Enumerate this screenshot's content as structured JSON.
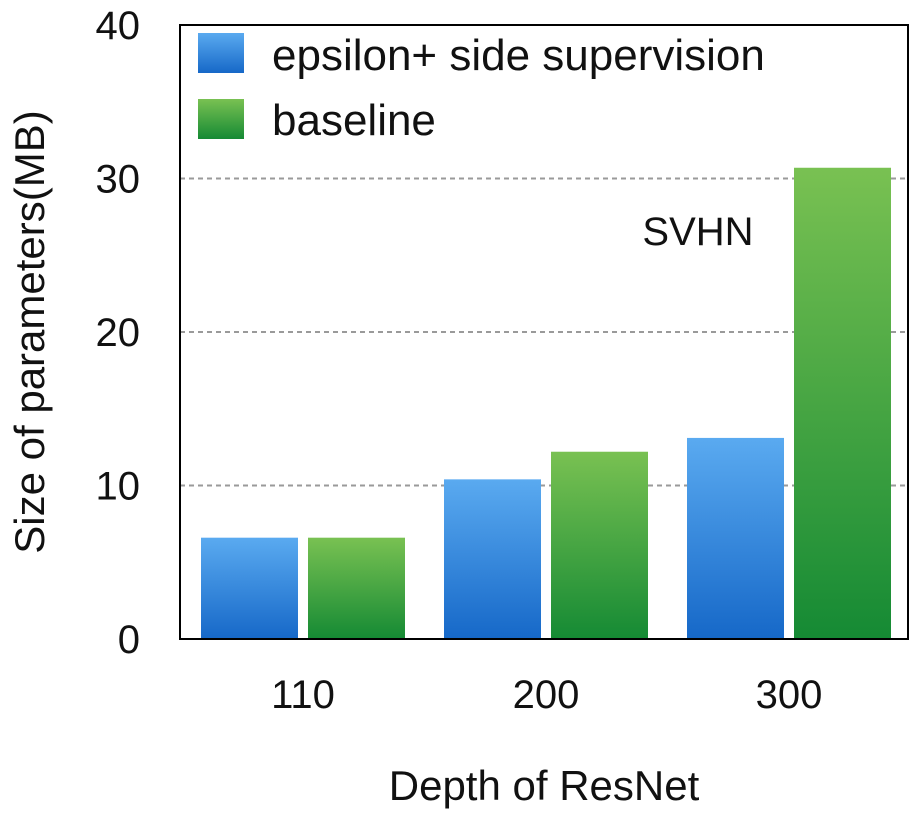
{
  "chart_data": {
    "type": "bar",
    "title": "",
    "annotation": "SVHN",
    "xlabel": "Depth of ResNet",
    "ylabel": "Size of parameters(MB)",
    "categories": [
      "110",
      "200",
      "300"
    ],
    "ylim": [
      0,
      40
    ],
    "yticks": [
      "0",
      "10",
      "20",
      "30",
      "40"
    ],
    "grid": true,
    "legend_position": "top-left",
    "series": [
      {
        "name": "epsilon+ side supervision",
        "values": [
          6.6,
          10.4,
          13.1
        ],
        "color_top": "#5aaaf0",
        "color_bottom": "#1668c8"
      },
      {
        "name": "baseline",
        "values": [
          6.6,
          12.2,
          30.7
        ],
        "color_top": "#79c152",
        "color_bottom": "#158a34"
      }
    ]
  }
}
